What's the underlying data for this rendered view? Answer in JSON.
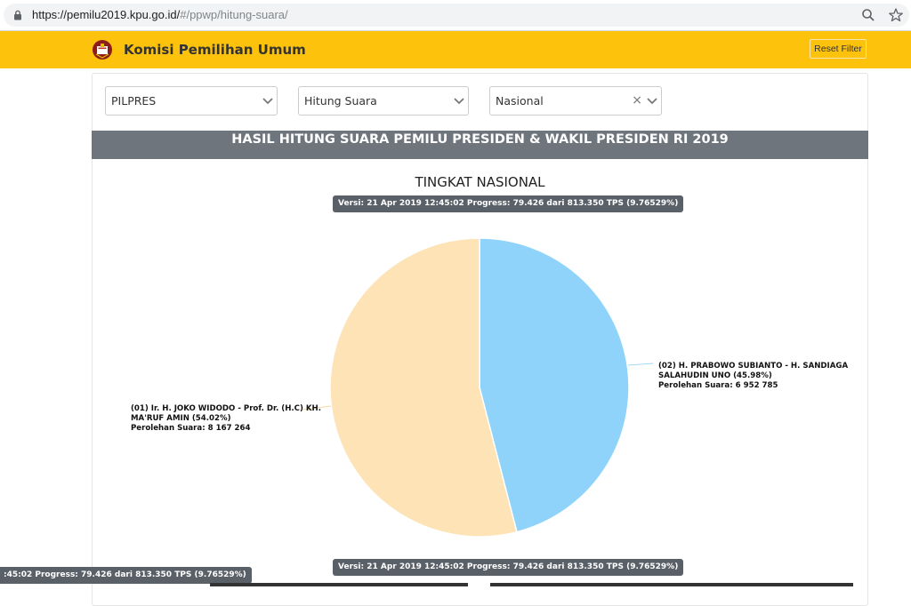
{
  "browser": {
    "url_host": "https://pemilu2019.kpu.go.id/",
    "url_path": "#/ppwp/hitung-suara/",
    "zoom_icon": "zoom-icon",
    "star_icon": "star-icon"
  },
  "header": {
    "brand": "Komisi Pemilihan Umum",
    "reset_label": "Reset Filter",
    "bg_color": "#fcc20c"
  },
  "filters": {
    "election": "PILPRES",
    "mode": "Hitung Suara",
    "region": "Nasional"
  },
  "banner": "HASIL HITUNG SUARA PEMILU PRESIDEN & WAKIL PRESIDEN RI 2019",
  "chart_title": "TINGKAT NASIONAL",
  "version_text": "Versi: 21 Apr 2019 12:45:02 Progress: 79.426 dari 813.350 TPS (9.76529%)",
  "version_text_cut": ":45:02 Progress: 79.426 dari 813.350 TPS (9.76529%)",
  "chart_data": {
    "type": "pie",
    "title": "TINGKAT NASIONAL",
    "slices": [
      {
        "line1": "(02) H. PRABOWO SUBIANTO - H. SANDIAGA",
        "line2": "SALAHUDIN UNO (45.98%)",
        "line3": "Perolehan Suara: 6 952 785",
        "votes": 6952785,
        "percent": 45.98,
        "color": "#8fd3fb"
      },
      {
        "line1": "(01) Ir. H. JOKO WIDODO - Prof. Dr. (H.C) KH.",
        "line2": "MA'RUF AMIN (54.02%)",
        "line3": "Perolehan Suara: 8 167 264",
        "votes": 8167264,
        "percent": 54.02,
        "color": "#fde3b5"
      }
    ]
  }
}
